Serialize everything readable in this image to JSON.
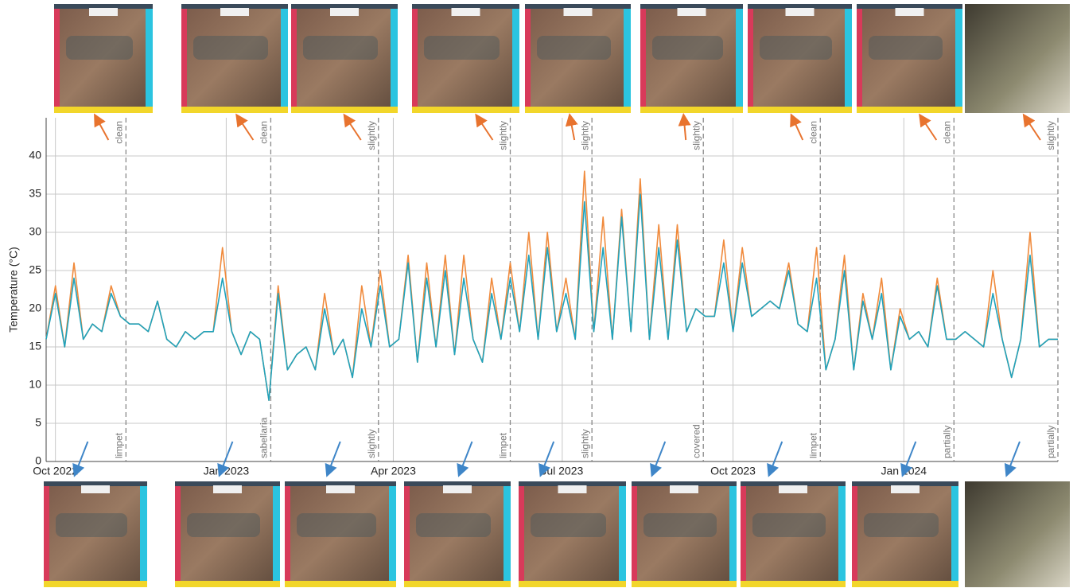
{
  "chart_data": {
    "type": "line",
    "y_label": "Temperature (°C)",
    "xlim": [
      -5,
      540
    ],
    "xticks": [
      {
        "value": 0,
        "label": "Oct 2022"
      },
      {
        "value": 92,
        "label": "Jan 2023"
      },
      {
        "value": 182,
        "label": "Apr 2023"
      },
      {
        "value": 273,
        "label": "Jul 2023"
      },
      {
        "value": 365,
        "label": "Oct 2023"
      },
      {
        "value": 457,
        "label": "Jan 2024"
      }
    ],
    "ylim": [
      0,
      45
    ],
    "yticks": [
      0,
      5,
      10,
      15,
      20,
      25,
      30,
      35,
      40
    ],
    "grid": true,
    "x": [
      -5,
      0,
      5,
      10,
      15,
      20,
      25,
      30,
      35,
      40,
      45,
      50,
      55,
      60,
      65,
      70,
      75,
      80,
      85,
      90,
      95,
      100,
      105,
      110,
      115,
      120,
      125,
      130,
      135,
      140,
      145,
      150,
      155,
      160,
      165,
      170,
      175,
      180,
      185,
      190,
      195,
      200,
      205,
      210,
      215,
      220,
      225,
      230,
      235,
      240,
      245,
      250,
      255,
      260,
      265,
      270,
      275,
      280,
      285,
      290,
      295,
      300,
      305,
      310,
      315,
      320,
      325,
      330,
      335,
      340,
      345,
      350,
      355,
      360,
      365,
      370,
      375,
      380,
      385,
      390,
      395,
      400,
      405,
      410,
      415,
      420,
      425,
      430,
      435,
      440,
      445,
      450,
      455,
      460,
      465,
      470,
      475,
      480,
      485,
      490,
      495,
      500,
      505,
      510,
      515,
      520,
      525,
      530,
      535,
      540
    ],
    "series": [
      {
        "color": "#f08a3c",
        "values": [
          16,
          23,
          15,
          26,
          16,
          18,
          17,
          23,
          19,
          18,
          18,
          17,
          21,
          16,
          15,
          17,
          16,
          17,
          17,
          28,
          17,
          14,
          17,
          16,
          8,
          23,
          12,
          14,
          15,
          12,
          22,
          14,
          16,
          11,
          23,
          15,
          25,
          15,
          16,
          27,
          13,
          26,
          15,
          27,
          14,
          27,
          16,
          13,
          24,
          16,
          26,
          17,
          30,
          16,
          30,
          17,
          24,
          16,
          38,
          17,
          32,
          16,
          33,
          17,
          37,
          16,
          31,
          16,
          31,
          17,
          20,
          19,
          19,
          29,
          17,
          28,
          19,
          20,
          21,
          20,
          26,
          18,
          17,
          28,
          12,
          16,
          27,
          12,
          22,
          16,
          24,
          12,
          20,
          16,
          17,
          15,
          24,
          16,
          16,
          17,
          16,
          15,
          25,
          16,
          11,
          16,
          30,
          15,
          16,
          16
        ]
      },
      {
        "color": "#1fa3bd",
        "values": [
          16,
          22,
          15,
          24,
          16,
          18,
          17,
          22,
          19,
          18,
          18,
          17,
          21,
          16,
          15,
          17,
          16,
          17,
          17,
          24,
          17,
          14,
          17,
          16,
          8,
          22,
          12,
          14,
          15,
          12,
          20,
          14,
          16,
          11,
          20,
          15,
          23,
          15,
          16,
          26,
          13,
          24,
          15,
          25,
          14,
          24,
          16,
          13,
          22,
          16,
          24,
          17,
          27,
          16,
          28,
          17,
          22,
          16,
          34,
          17,
          28,
          16,
          32,
          17,
          35,
          16,
          28,
          16,
          29,
          17,
          20,
          19,
          19,
          26,
          17,
          26,
          19,
          20,
          21,
          20,
          25,
          18,
          17,
          24,
          12,
          16,
          25,
          12,
          21,
          16,
          22,
          12,
          19,
          16,
          17,
          15,
          23,
          16,
          16,
          17,
          16,
          15,
          22,
          16,
          11,
          16,
          27,
          15,
          16,
          16
        ]
      }
    ],
    "events": [
      {
        "x": 38,
        "top": "clean",
        "bottom": "limpet"
      },
      {
        "x": 116,
        "top": "clean",
        "bottom": "sabellaria"
      },
      {
        "x": 174,
        "top": "slightly",
        "bottom": "slightly"
      },
      {
        "x": 245,
        "top": "slightly",
        "bottom": "limpet"
      },
      {
        "x": 289,
        "top": "slightly",
        "bottom": "slightly"
      },
      {
        "x": 349,
        "top": "slightly",
        "bottom": "covered"
      },
      {
        "x": 412,
        "top": "clean",
        "bottom": "limpet"
      },
      {
        "x": 484,
        "top": "clean",
        "bottom": "partially"
      },
      {
        "x": 540,
        "top": "slightly",
        "bottom": "partially"
      }
    ]
  }
}
